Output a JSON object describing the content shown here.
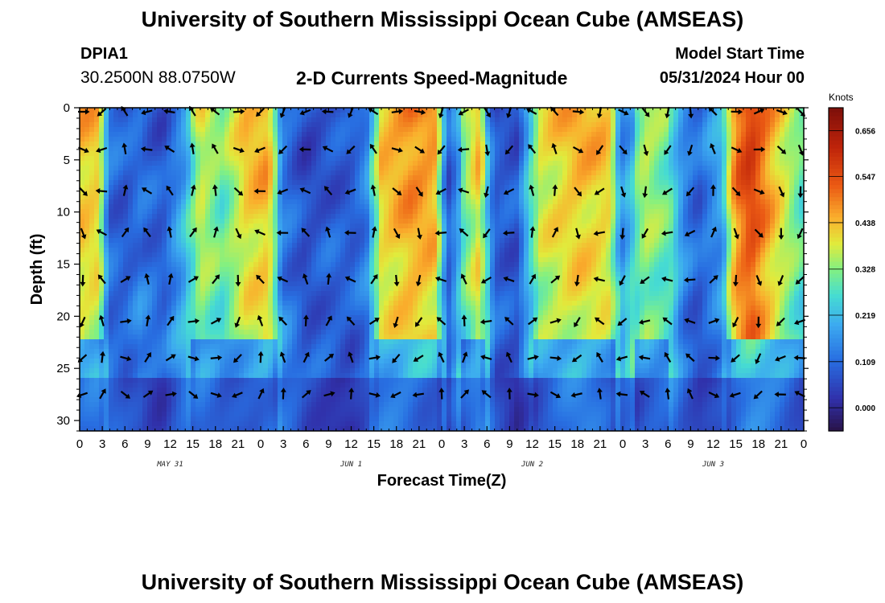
{
  "header": {
    "title": "University of Southern Mississippi Ocean Cube (AMSEAS)",
    "station_id": "DPIA1",
    "coordinates": "30.2500N  88.0750W",
    "subtitle": "2-D Currents Speed-Magnitude",
    "model_start_label": "Model Start Time",
    "model_start_value": "05/31/2024 Hour 00"
  },
  "footer": {
    "title": "University of Southern Mississippi Ocean Cube (AMSEAS)"
  },
  "chart_data": {
    "type": "heatmap",
    "title": "2-D Currents Speed-Magnitude",
    "xlabel": "Forecast Time(Z)",
    "ylabel": "Depth (ft)",
    "x_unit": "hours since 05/31/2024 00Z",
    "xlim": [
      0,
      96
    ],
    "ylim": [
      0,
      31
    ],
    "y_inverted": true,
    "x_ticks": [
      0,
      3,
      6,
      9,
      12,
      15,
      18,
      21,
      24,
      27,
      30,
      33,
      36,
      39,
      42,
      45,
      48,
      51,
      54,
      57,
      60,
      63,
      66,
      69,
      72,
      75,
      78,
      81,
      84,
      87,
      90,
      93,
      96
    ],
    "x_tick_labels": [
      "0",
      "3",
      "6",
      "9",
      "12",
      "15",
      "18",
      "21",
      "0",
      "3",
      "6",
      "9",
      "12",
      "15",
      "18",
      "21",
      "0",
      "3",
      "6",
      "9",
      "12",
      "15",
      "18",
      "21",
      "0",
      "3",
      "6",
      "9",
      "12",
      "15",
      "18",
      "21",
      "0"
    ],
    "y_ticks": [
      0,
      5,
      10,
      15,
      20,
      25,
      30
    ],
    "y_tick_labels": [
      "0",
      "5",
      "10",
      "15",
      "20",
      "25",
      "30"
    ],
    "date_labels": [
      {
        "hour": 12,
        "text": "MAY 31"
      },
      {
        "hour": 36,
        "text": "JUN 1"
      },
      {
        "hour": 60,
        "text": "JUN 2"
      },
      {
        "hour": 84,
        "text": "JUN 3"
      }
    ],
    "arrow_depths": [
      0,
      4,
      8,
      12,
      16.5,
      20.5,
      24,
      27.5
    ],
    "colorbar": {
      "title": "Knots",
      "range": [
        -0.055,
        0.71
      ],
      "ticks": [
        0.0,
        0.109,
        0.219,
        0.328,
        0.438,
        0.547,
        0.656
      ],
      "tick_labels": [
        "0.000",
        "0.109",
        "0.219",
        "0.328",
        "0.438",
        "0.547",
        "0.656"
      ]
    },
    "surface_speed_knots": [
      {
        "hour": 0,
        "v": 0.45
      },
      {
        "hour": 2.5,
        "v": 0.44
      },
      {
        "hour": 4,
        "v": 0.15
      },
      {
        "hour": 6,
        "v": 0.12
      },
      {
        "hour": 8,
        "v": 0.16
      },
      {
        "hour": 11,
        "v": 0.1
      },
      {
        "hour": 14,
        "v": 0.22
      },
      {
        "hour": 16,
        "v": 0.4
      },
      {
        "hour": 19,
        "v": 0.32
      },
      {
        "hour": 22,
        "v": 0.44
      },
      {
        "hour": 25,
        "v": 0.47
      },
      {
        "hour": 27,
        "v": 0.18
      },
      {
        "hour": 30,
        "v": 0.08
      },
      {
        "hour": 33,
        "v": 0.1
      },
      {
        "hour": 36,
        "v": 0.09
      },
      {
        "hour": 38,
        "v": 0.14
      },
      {
        "hour": 40,
        "v": 0.44
      },
      {
        "hour": 44,
        "v": 0.5
      },
      {
        "hour": 47,
        "v": 0.48
      },
      {
        "hour": 49,
        "v": 0.12
      },
      {
        "hour": 51,
        "v": 0.33
      },
      {
        "hour": 53,
        "v": 0.45
      },
      {
        "hour": 55,
        "v": 0.1
      },
      {
        "hour": 58,
        "v": 0.08
      },
      {
        "hour": 61,
        "v": 0.4
      },
      {
        "hour": 66,
        "v": 0.46
      },
      {
        "hour": 70,
        "v": 0.44
      },
      {
        "hour": 72,
        "v": 0.22
      },
      {
        "hour": 75,
        "v": 0.38
      },
      {
        "hour": 78,
        "v": 0.32
      },
      {
        "hour": 80,
        "v": 0.16
      },
      {
        "hour": 82,
        "v": 0.1
      },
      {
        "hour": 85,
        "v": 0.22
      },
      {
        "hour": 87,
        "v": 0.52
      },
      {
        "hour": 89,
        "v": 0.6
      },
      {
        "hour": 92,
        "v": 0.46
      },
      {
        "hour": 96,
        "v": 0.3
      }
    ]
  }
}
